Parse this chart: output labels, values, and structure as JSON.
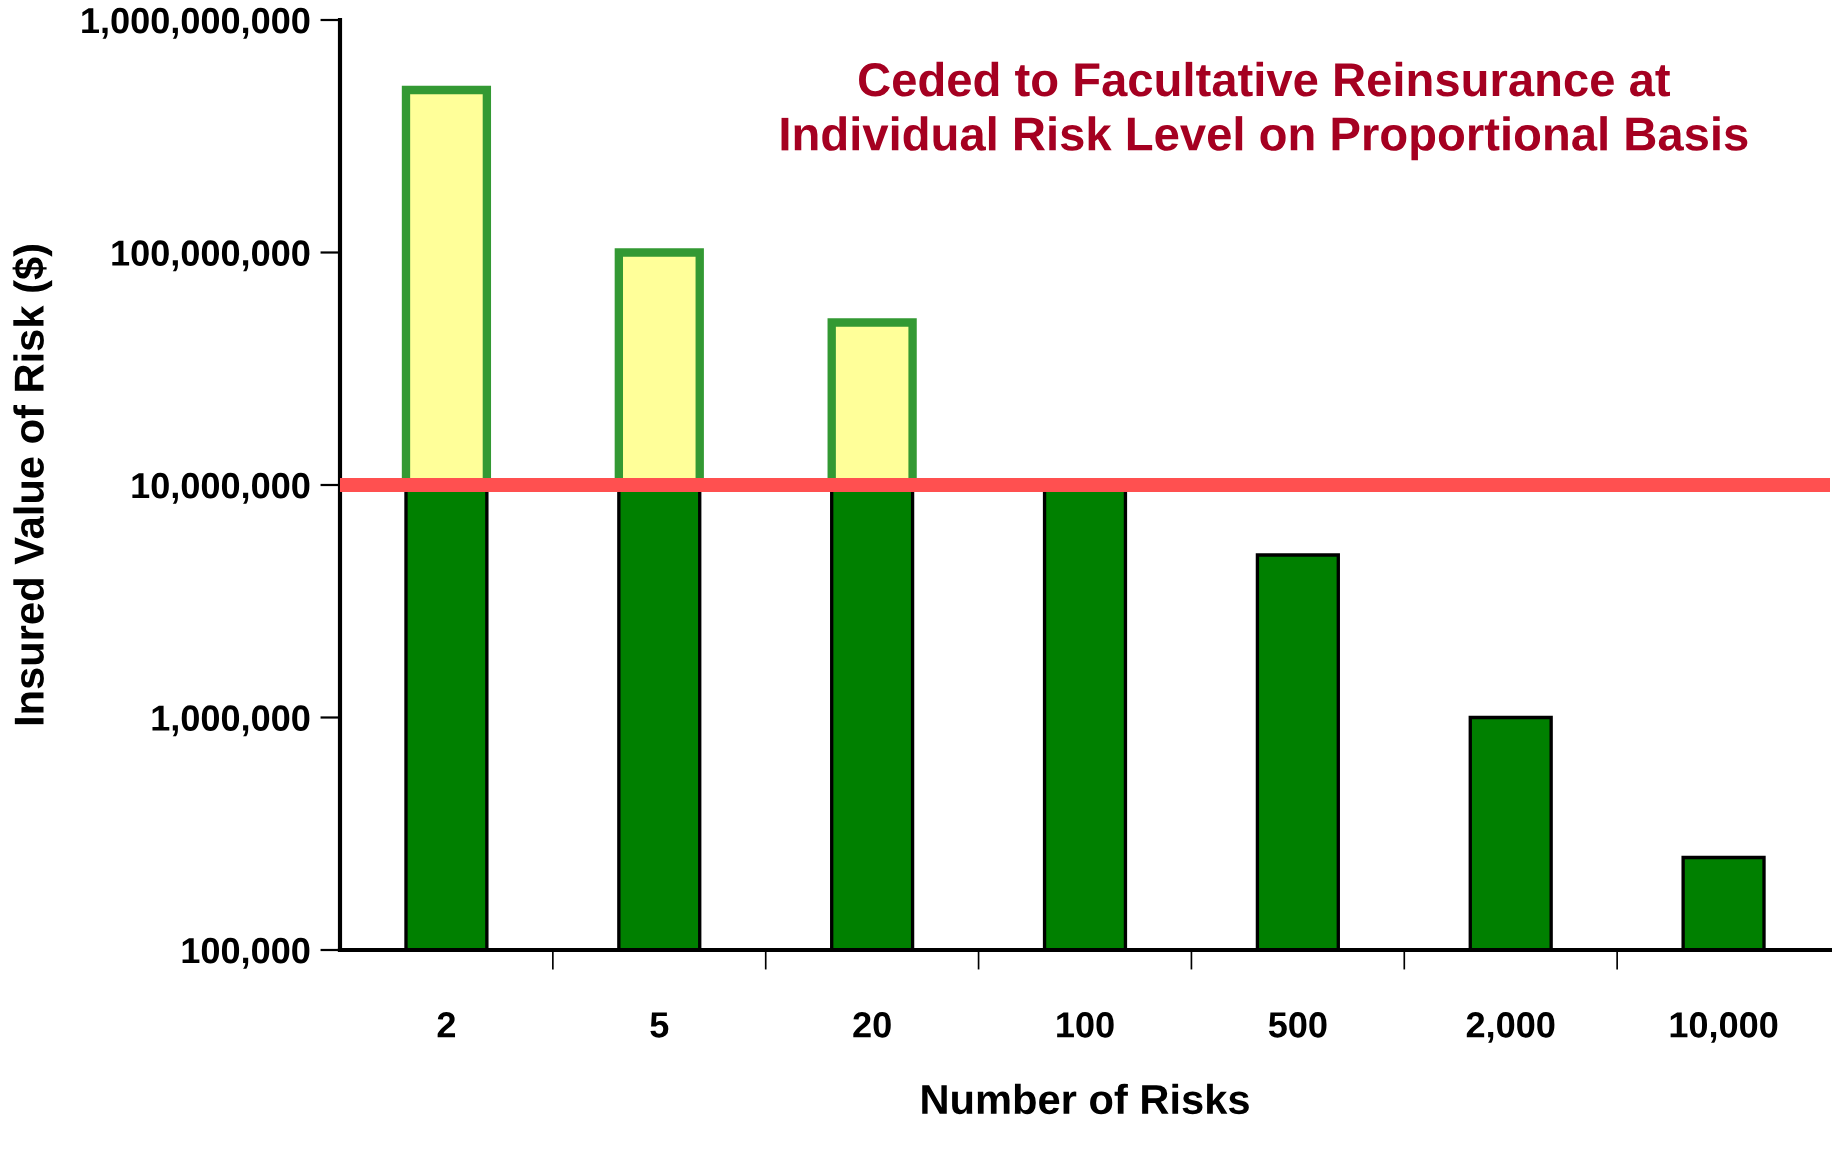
{
  "chart_data": {
    "type": "bar",
    "title": "Ceded to Facultative Reinsurance at\nIndividual Risk Level on Proportional Basis",
    "xlabel": "Number of Risks",
    "ylabel": "Insured Value of Risk ($)",
    "categories": [
      "2",
      "5",
      "20",
      "100",
      "500",
      "2,000",
      "10,000"
    ],
    "stacked": true,
    "log": true,
    "series": [
      {
        "color": "#008000",
        "values": [
          10000000,
          10000000,
          10000000,
          10000000,
          5000000,
          1000000,
          250000
        ]
      },
      {
        "color": "#ffff99",
        "values": [
          490000000,
          90000000,
          40000000,
          null,
          null,
          null,
          null
        ]
      }
    ],
    "ylim": [
      100000,
      1000000000
    ],
    "yticks": [
      {
        "value": 100000,
        "label": "100,000"
      },
      {
        "value": 1000000,
        "label": "1,000,000"
      },
      {
        "value": 10000000,
        "label": "10,000,000"
      },
      {
        "value": 100000000,
        "label": "100,000,000"
      },
      {
        "value": 1000000000,
        "label": "1,000,000,000"
      }
    ],
    "ref_lines": [
      {
        "axis": "y",
        "value": 10000000,
        "color": "#ff5050"
      }
    ],
    "grid": false,
    "legend": false
  }
}
